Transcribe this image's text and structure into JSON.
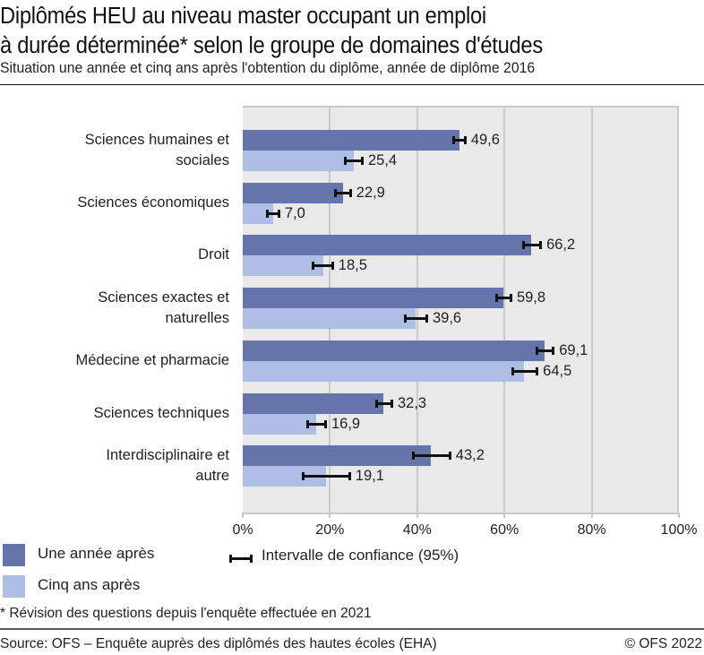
{
  "header": {
    "title_line1": "Diplômés HEU au niveau master occupant un emploi",
    "title_line2": "à durée déterminée* selon le groupe de domaines d'études",
    "subtitle": "Situation une année et cinq ans après l'obtention du diplôme, année de diplôme 2016"
  },
  "colors": {
    "series_one_year": "#6674ac",
    "series_five_years": "#aebde3",
    "plot_background": "#e9e9e9",
    "gridline": "#c9c9c9",
    "error_bar": "#111111"
  },
  "axis": {
    "ticks": [
      "0%",
      "20%",
      "40%",
      "60%",
      "80%",
      "100%"
    ]
  },
  "legend": {
    "series_one_year": "Une année après",
    "series_five_years": "Cinq ans après",
    "confidence_interval": "Intervalle de confiance (95%)"
  },
  "categories": [
    {
      "label_line1": "Sciences humaines et",
      "label_line2": "sociales",
      "one_year": "49,6",
      "five_years": "25,4"
    },
    {
      "label_line1": "Sciences économiques",
      "label_line2": "",
      "one_year": "22,9",
      "five_years": "7,0"
    },
    {
      "label_line1": "Droit",
      "label_line2": "",
      "one_year": "66,2",
      "five_years": "18,5"
    },
    {
      "label_line1": "Sciences exactes et",
      "label_line2": "naturelles",
      "one_year": "59,8",
      "five_years": "39,6"
    },
    {
      "label_line1": "Médecine et pharmacie",
      "label_line2": "",
      "one_year": "69,1",
      "five_years": "64,5"
    },
    {
      "label_line1": "Sciences techniques",
      "label_line2": "",
      "one_year": "32,3",
      "five_years": "16,9"
    },
    {
      "label_line1": "Interdisciplinaire et",
      "label_line2": "autre",
      "one_year": "43,2",
      "five_years": "19,1"
    }
  ],
  "footer": {
    "footnote": "* Révision des questions depuis l'enquête effectuée en 2021",
    "source": "Source: OFS – Enquête auprès des diplômés des hautes écoles (EHA)",
    "copyright": "© OFS 2022"
  },
  "chart_data": {
    "type": "bar",
    "orientation": "horizontal",
    "title": "Diplômés HEU au niveau master occupant un emploi à durée déterminée* selon le groupe de domaines d'études",
    "subtitle": "Situation une année et cinq ans après l'obtention du diplôme, année de diplôme 2016",
    "categories": [
      "Sciences humaines et sociales",
      "Sciences économiques",
      "Droit",
      "Sciences exactes et naturelles",
      "Médecine et pharmacie",
      "Sciences techniques",
      "Interdisciplinaire et autre"
    ],
    "series": [
      {
        "name": "Une année après",
        "color": "#6674ac",
        "values": [
          49.6,
          22.9,
          66.2,
          59.8,
          69.1,
          32.3,
          43.2
        ],
        "ci_low": [
          48.0,
          20.9,
          64.1,
          57.9,
          67.1,
          30.4,
          38.8
        ],
        "ci_high": [
          51.3,
          25.0,
          68.6,
          61.8,
          71.5,
          34.5,
          47.8
        ]
      },
      {
        "name": "Cinq ans après",
        "color": "#aebde3",
        "values": [
          25.4,
          7.0,
          18.5,
          39.6,
          64.5,
          16.9,
          19.1
        ],
        "ci_low": [
          23.2,
          5.3,
          15.8,
          37.0,
          61.6,
          14.6,
          13.6
        ],
        "ci_high": [
          27.7,
          8.6,
          20.9,
          42.5,
          67.8,
          19.3,
          24.8
        ]
      }
    ],
    "xlabel": "",
    "ylabel": "",
    "xlim": [
      0,
      100
    ],
    "x_tick_labels": [
      "0%",
      "20%",
      "40%",
      "60%",
      "80%",
      "100%"
    ],
    "grid": true,
    "legend": [
      "Une année après",
      "Cinq ans après",
      "Intervalle de confiance (95%)"
    ],
    "legend_position": "bottom",
    "annotations": [
      "* Révision des questions depuis l'enquête effectuée en 2021"
    ],
    "source": "Source: OFS – Enquête auprès des diplômés des hautes écoles (EHA)"
  }
}
